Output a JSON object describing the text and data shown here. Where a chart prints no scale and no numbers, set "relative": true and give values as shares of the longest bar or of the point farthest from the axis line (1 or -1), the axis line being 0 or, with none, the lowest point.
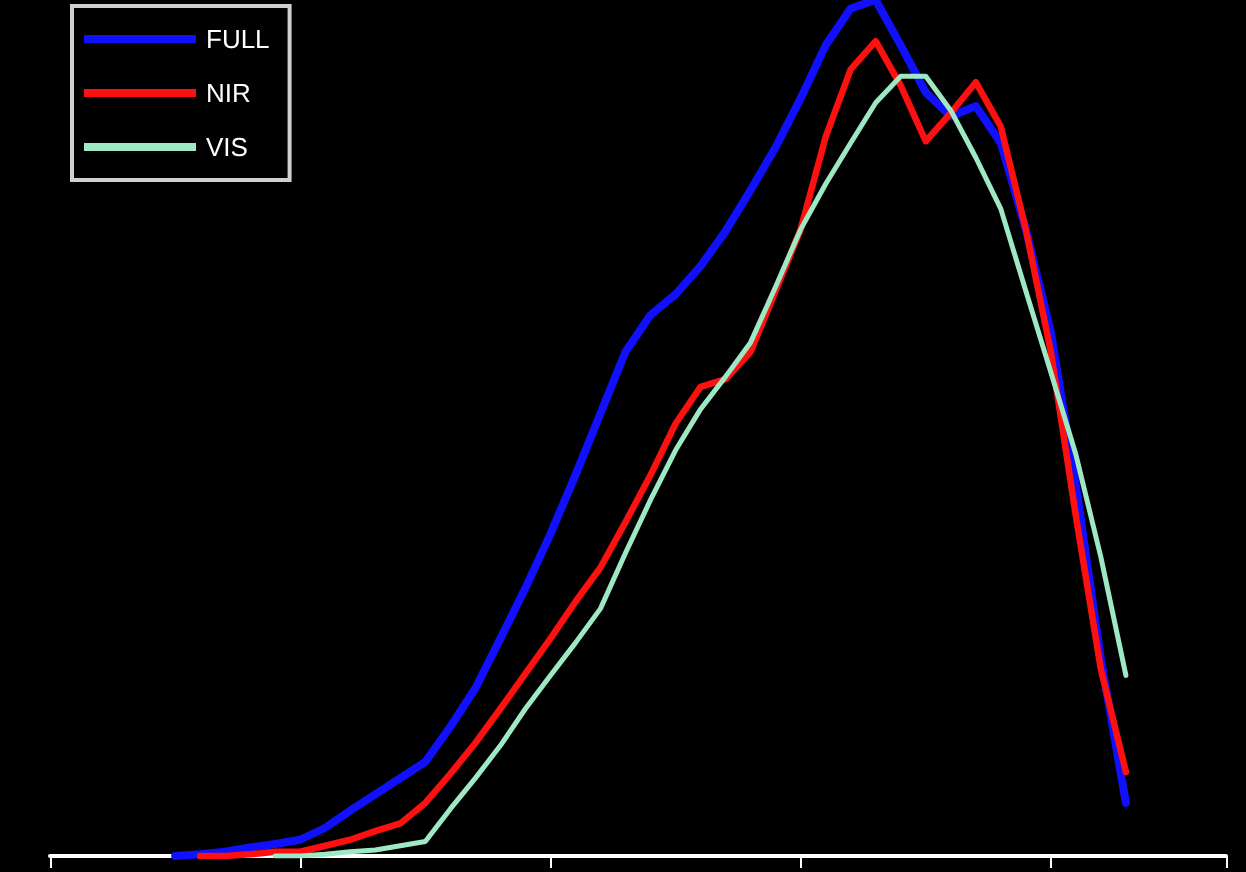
{
  "chart_data": {
    "type": "line",
    "relative": true,
    "legend": "top left",
    "grid": false,
    "marker": "none",
    "line_style": "solid",
    "categories": [
      null,
      null,
      null,
      null,
      null,
      null,
      null,
      null,
      null,
      null,
      null,
      null,
      null,
      null,
      null,
      null,
      null,
      null,
      null,
      null,
      null,
      null,
      null,
      null,
      null,
      null,
      null,
      null,
      null,
      null,
      null,
      null,
      null,
      null,
      null,
      null,
      null,
      null,
      null,
      null,
      null,
      null,
      null,
      null,
      null,
      null,
      null,
      null
    ],
    "series": [
      {
        "name": "FULL",
        "color": "#1010ff",
        "values": [
          null,
          null,
          null,
          null,
          null,
          0,
          0.002,
          0.005,
          0.01,
          0.014,
          0.019,
          0.033,
          0.053,
          0.072,
          0.091,
          0.11,
          0.151,
          0.196,
          0.254,
          0.313,
          0.376,
          0.445,
          0.517,
          0.589,
          0.632,
          0.656,
          0.689,
          0.73,
          0.778,
          0.828,
          0.885,
          0.947,
          0.99,
          1,
          0.947,
          0.892,
          0.864,
          0.876,
          0.833,
          0.732,
          0.612,
          0.433,
          0.23,
          0.062,
          null,
          null,
          null,
          null
        ]
      },
      {
        "name": "NIR",
        "color": "#ff1010",
        "values": [
          null,
          null,
          null,
          null,
          null,
          null,
          0,
          0,
          0.002,
          0.005,
          0.005,
          0.012,
          0.019,
          0.029,
          0.038,
          0.062,
          0.096,
          0.132,
          0.172,
          0.213,
          0.254,
          0.297,
          0.337,
          0.39,
          0.445,
          0.505,
          0.548,
          0.557,
          0.589,
          0.66,
          0.732,
          0.84,
          0.919,
          0.952,
          0.9,
          0.835,
          0.868,
          0.904,
          0.852,
          0.732,
          0.589,
          0.397,
          0.218,
          0.098,
          null,
          null,
          null,
          null
        ]
      },
      {
        "name": "VIS",
        "color": "#9ee8c4",
        "values": [
          null,
          null,
          null,
          null,
          null,
          null,
          null,
          null,
          null,
          0,
          0,
          0.002,
          0.005,
          0.007,
          0.012,
          0.017,
          0.055,
          0.091,
          0.129,
          0.172,
          0.211,
          0.249,
          0.289,
          0.354,
          0.416,
          0.474,
          0.522,
          0.56,
          0.6,
          0.665,
          0.732,
          0.785,
          0.833,
          0.88,
          0.911,
          0.911,
          0.871,
          0.816,
          0.756,
          0.66,
          0.565,
          0.469,
          0.349,
          0.211,
          null,
          null,
          null,
          null
        ]
      }
    ]
  }
}
